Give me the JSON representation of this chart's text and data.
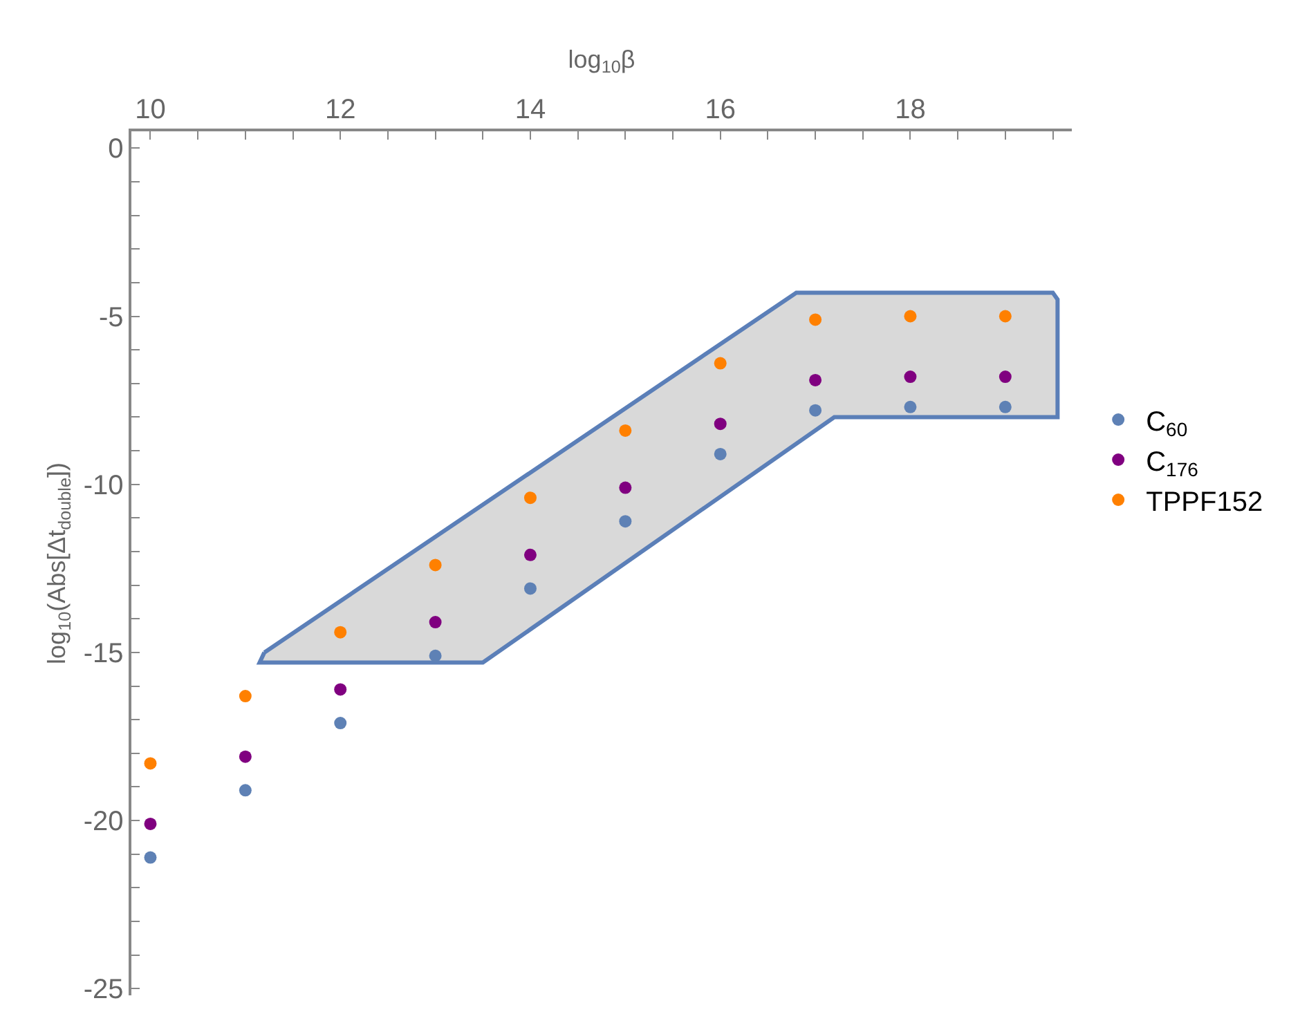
{
  "chart_data": {
    "type": "scatter",
    "xlabel": "log$_{10}$β",
    "ylabel": "log$_{10}$(Abs[Δt$_{double}$])",
    "x": [
      10,
      11,
      12,
      13,
      14,
      15,
      16,
      17,
      18,
      19
    ],
    "xlim": [
      9.8,
      19.7
    ],
    "xticks": [
      10,
      {
        "value": 10.5,
        "label": null
      },
      {
        "value": 11,
        "label": null
      },
      {
        "value": 11.5,
        "label": null
      },
      12,
      {
        "value": 12.5,
        "label": null
      },
      {
        "value": 13,
        "label": null
      },
      {
        "value": 13.5,
        "label": null
      },
      14,
      {
        "value": 14.5,
        "label": null
      },
      {
        "value": 15,
        "label": null
      },
      {
        "value": 15.5,
        "label": null
      },
      16,
      {
        "value": 16.5,
        "label": null
      },
      {
        "value": 17,
        "label": null
      },
      {
        "value": 17.5,
        "label": null
      },
      18,
      {
        "value": 18.5,
        "label": null
      },
      {
        "value": 19,
        "label": null
      },
      {
        "value": 19.5,
        "label": null
      }
    ],
    "ylim": [
      -25.2,
      0.5
    ],
    "yticks": [
      0,
      {
        "value": -1,
        "label": null
      },
      {
        "value": -2,
        "label": null
      },
      {
        "value": -3,
        "label": null
      },
      {
        "value": -4,
        "label": null
      },
      -5,
      {
        "value": -6,
        "label": null
      },
      {
        "value": -7,
        "label": null
      },
      {
        "value": -8,
        "label": null
      },
      {
        "value": -9,
        "label": null
      },
      -10,
      {
        "value": -11,
        "label": null
      },
      {
        "value": -12,
        "label": null
      },
      {
        "value": -13,
        "label": null
      },
      {
        "value": -14,
        "label": null
      },
      -15,
      {
        "value": -16,
        "label": null
      },
      {
        "value": -17,
        "label": null
      },
      {
        "value": -18,
        "label": null
      },
      {
        "value": -19,
        "label": null
      },
      -20,
      {
        "value": -21,
        "label": null
      },
      {
        "value": -22,
        "label": null
      },
      {
        "value": -23,
        "label": null
      },
      {
        "value": -24,
        "label": null
      },
      -25
    ],
    "legend": "right",
    "marker": "circle",
    "series": [
      {
        "type": "area",
        "marker": "none",
        "color": "#5b7fb8",
        "x": [
          11.2,
          16.8,
          19.5,
          19.55,
          19.55,
          17.2,
          13.5,
          11.15,
          11.2
        ],
        "values": [
          -15.0,
          -4.3,
          -4.3,
          -4.5,
          -8.0,
          -8.0,
          -15.3,
          -15.3,
          -15.0
        ]
      },
      {
        "name": "C$_{60}$",
        "color": "#5e81b5",
        "values": [
          -21.1,
          -19.1,
          -17.1,
          -15.1,
          -13.1,
          -11.1,
          -9.1,
          -7.8,
          -7.7,
          -7.7
        ]
      },
      {
        "name": "C$_{176}$",
        "color": "#800080",
        "values": [
          -20.1,
          -18.1,
          -16.1,
          -14.1,
          -12.1,
          -10.1,
          -8.2,
          -6.9,
          -6.8,
          -6.8
        ]
      },
      {
        "name": "TPPF152",
        "color": "#ff8000",
        "values": [
          -18.3,
          -16.3,
          -14.4,
          -12.4,
          -10.4,
          -8.4,
          -6.4,
          -5.1,
          -5.0,
          -5.0
        ]
      }
    ]
  }
}
